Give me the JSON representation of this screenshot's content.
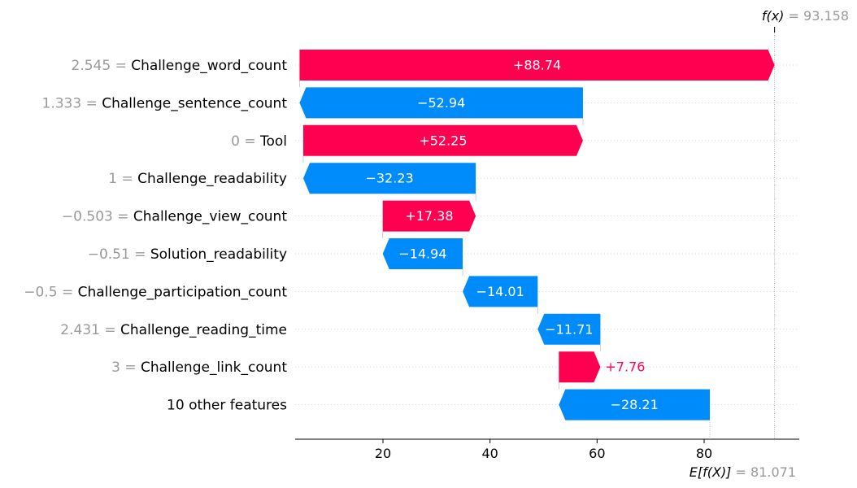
{
  "colors": {
    "positive": "#ff0051",
    "negative": "#008bfb",
    "muted": "#999999",
    "text": "#000000",
    "grid": "#cccccc"
  },
  "chart_data": {
    "type": "waterfall",
    "fx_label": "f(x)",
    "fx_value": "= 93.158",
    "base_label": "E[f(X)]",
    "base_value": "= 81.071",
    "fx": 93.158,
    "base": 81.071,
    "xlim": [
      3.5,
      97
    ],
    "x_ticks": [
      20,
      40,
      60,
      80
    ],
    "x_tick_labels": [
      "20",
      "40",
      "60",
      "80"
    ],
    "features": [
      {
        "value_text": "2.545 =",
        "name": "Challenge_word_count",
        "contribution": 88.74,
        "label": "+88.74"
      },
      {
        "value_text": "1.333 =",
        "name": "Challenge_sentence_count",
        "contribution": -52.94,
        "label": "−52.94"
      },
      {
        "value_text": "0 =",
        "name": "Tool",
        "contribution": 52.25,
        "label": "+52.25"
      },
      {
        "value_text": "1 =",
        "name": "Challenge_readability",
        "contribution": -32.23,
        "label": "−32.23"
      },
      {
        "value_text": "−0.503 =",
        "name": "Challenge_view_count",
        "contribution": 17.38,
        "label": "+17.38"
      },
      {
        "value_text": "−0.51 =",
        "name": "Solution_readability",
        "contribution": -14.94,
        "label": "−14.94"
      },
      {
        "value_text": "−0.5 =",
        "name": "Challenge_participation_count",
        "contribution": -14.01,
        "label": "−14.01"
      },
      {
        "value_text": "2.431 =",
        "name": "Challenge_reading_time",
        "contribution": -11.71,
        "label": "−11.71"
      },
      {
        "value_text": "3 =",
        "name": "Challenge_link_count",
        "contribution": 7.76,
        "label": "+7.76"
      },
      {
        "value_text": "",
        "name": "10 other features",
        "contribution": -28.21,
        "label": "−28.21"
      }
    ]
  }
}
